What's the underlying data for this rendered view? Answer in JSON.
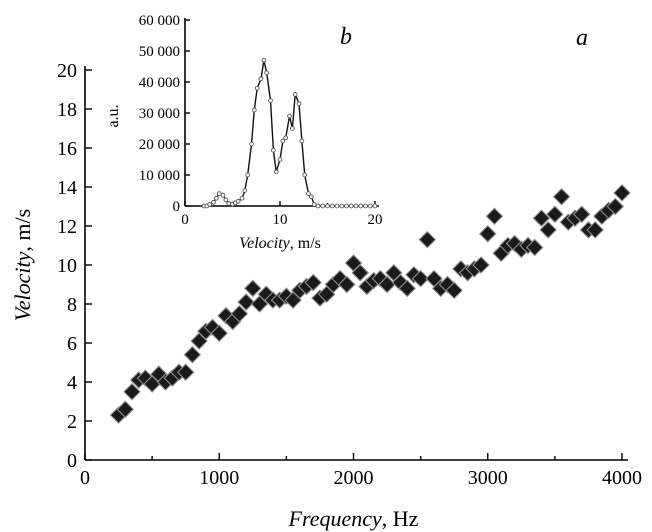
{
  "chart_data": [
    {
      "id": "main",
      "type": "scatter",
      "panel_label": "a",
      "xlabel_italic": "Frequency",
      "xlabel_unit": ", Hz",
      "ylabel_italic": "Velocity",
      "ylabel_unit": ", m/s",
      "xlim": [
        0,
        4000
      ],
      "ylim": [
        0,
        20
      ],
      "xticks": [
        0,
        1000,
        2000,
        3000,
        4000
      ],
      "yticks": [
        0,
        2,
        4,
        6,
        8,
        10,
        12,
        14,
        16,
        18,
        20
      ],
      "points": [
        [
          250,
          2.3
        ],
        [
          300,
          2.6
        ],
        [
          350,
          3.5
        ],
        [
          400,
          4.1
        ],
        [
          450,
          4.2
        ],
        [
          500,
          3.9
        ],
        [
          550,
          4.4
        ],
        [
          600,
          4.0
        ],
        [
          650,
          4.2
        ],
        [
          700,
          4.5
        ],
        [
          750,
          4.5
        ],
        [
          800,
          5.4
        ],
        [
          850,
          6.1
        ],
        [
          900,
          6.6
        ],
        [
          950,
          6.8
        ],
        [
          1000,
          6.5
        ],
        [
          1050,
          7.4
        ],
        [
          1100,
          7.1
        ],
        [
          1150,
          7.5
        ],
        [
          1200,
          8.1
        ],
        [
          1250,
          8.8
        ],
        [
          1300,
          8.0
        ],
        [
          1350,
          8.5
        ],
        [
          1400,
          8.2
        ],
        [
          1450,
          8.2
        ],
        [
          1500,
          8.4
        ],
        [
          1550,
          8.2
        ],
        [
          1600,
          8.7
        ],
        [
          1650,
          8.9
        ],
        [
          1700,
          9.1
        ],
        [
          1750,
          8.3
        ],
        [
          1800,
          8.5
        ],
        [
          1850,
          9.0
        ],
        [
          1900,
          9.3
        ],
        [
          1950,
          9.0
        ],
        [
          2000,
          10.1
        ],
        [
          2050,
          9.6
        ],
        [
          2100,
          8.9
        ],
        [
          2150,
          9.2
        ],
        [
          2200,
          9.3
        ],
        [
          2250,
          9.0
        ],
        [
          2300,
          9.6
        ],
        [
          2350,
          9.1
        ],
        [
          2400,
          8.8
        ],
        [
          2450,
          9.5
        ],
        [
          2500,
          9.3
        ],
        [
          2550,
          11.3
        ],
        [
          2600,
          9.3
        ],
        [
          2650,
          8.8
        ],
        [
          2700,
          9.0
        ],
        [
          2750,
          8.7
        ],
        [
          2800,
          9.8
        ],
        [
          2850,
          9.6
        ],
        [
          2900,
          9.8
        ],
        [
          2950,
          10.0
        ],
        [
          3000,
          11.6
        ],
        [
          3050,
          12.5
        ],
        [
          3100,
          10.6
        ],
        [
          3150,
          11.0
        ],
        [
          3200,
          11.1
        ],
        [
          3250,
          10.8
        ],
        [
          3300,
          11.0
        ],
        [
          3350,
          10.9
        ],
        [
          3400,
          12.4
        ],
        [
          3450,
          11.8
        ],
        [
          3500,
          12.6
        ],
        [
          3550,
          13.5
        ],
        [
          3600,
          12.2
        ],
        [
          3650,
          12.4
        ],
        [
          3700,
          12.6
        ],
        [
          3750,
          11.8
        ],
        [
          3800,
          11.8
        ],
        [
          3850,
          12.5
        ],
        [
          3900,
          12.8
        ],
        [
          3950,
          13.0
        ],
        [
          4000,
          13.7
        ]
      ]
    },
    {
      "id": "inset",
      "type": "line",
      "panel_label": "b",
      "xlabel_italic": "Velocity",
      "xlabel_unit": ", m/s",
      "ylabel": "a.u.",
      "xlim": [
        0,
        20
      ],
      "ylim": [
        0,
        60000
      ],
      "xticks": [
        0,
        10,
        20
      ],
      "yticks": [
        0,
        10000,
        20000,
        30000,
        40000,
        50000,
        60000
      ],
      "ytick_labels": [
        "0",
        "10 000",
        "20 000",
        "30 000",
        "40 000",
        "50 000",
        "60 000"
      ],
      "x": [
        2.0,
        2.3,
        2.6,
        3.0,
        3.3,
        3.6,
        4.0,
        4.3,
        4.6,
        5.0,
        5.3,
        5.6,
        6.0,
        6.3,
        6.6,
        7.0,
        7.3,
        7.6,
        8.0,
        8.3,
        8.6,
        9.0,
        9.3,
        9.6,
        10.0,
        10.3,
        10.6,
        11.0,
        11.3,
        11.6,
        12.0,
        12.3,
        12.6,
        13.0,
        13.3,
        13.6,
        14.0,
        14.5,
        15.0,
        15.5,
        16.0,
        16.5,
        17.0,
        17.5,
        18.0,
        18.5,
        19.0,
        19.5,
        20.0
      ],
      "y": [
        0,
        0,
        500,
        1200,
        2500,
        4000,
        3500,
        2000,
        800,
        600,
        1000,
        1500,
        2500,
        5000,
        10000,
        20000,
        31000,
        38000,
        41000,
        47000,
        43000,
        34000,
        18000,
        11000,
        15000,
        21000,
        22000,
        29000,
        25000,
        36000,
        33000,
        21000,
        10000,
        4000,
        3000,
        500,
        0,
        0,
        0,
        0,
        0,
        0,
        0,
        0,
        0,
        0,
        0,
        0,
        0
      ]
    }
  ]
}
